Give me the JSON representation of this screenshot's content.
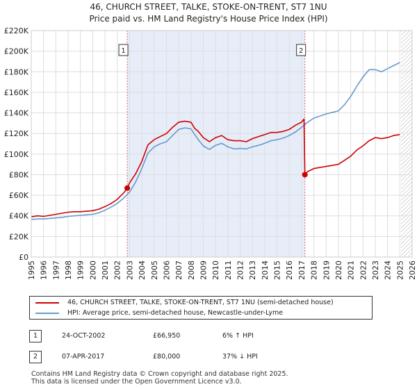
{
  "chart_data": {
    "type": "line",
    "title": "46, CHURCH STREET, TALKE, STOKE-ON-TRENT, ST7 1NU",
    "subtitle": "Price paid vs. HM Land Registry's House Price Index (HPI)",
    "xlabel": "",
    "ylabel": "",
    "xlim": [
      1995,
      2026
    ],
    "ylim": [
      0,
      220000
    ],
    "y_ticks": [
      0,
      20000,
      40000,
      60000,
      80000,
      100000,
      120000,
      140000,
      160000,
      180000,
      200000,
      220000
    ],
    "y_tick_labels": [
      "£0",
      "£20K",
      "£40K",
      "£60K",
      "£80K",
      "£100K",
      "£120K",
      "£140K",
      "£160K",
      "£180K",
      "£200K",
      "£220K"
    ],
    "x_ticks": [
      1995,
      1996,
      1997,
      1998,
      1999,
      2000,
      2001,
      2002,
      2003,
      2004,
      2005,
      2006,
      2007,
      2008,
      2009,
      2010,
      2011,
      2012,
      2013,
      2014,
      2015,
      2016,
      2017,
      2018,
      2019,
      2020,
      2021,
      2022,
      2023,
      2024,
      2025,
      2026
    ],
    "x_tick_labels": [
      "1995",
      "1996",
      "1997",
      "1998",
      "1999",
      "2000",
      "2001",
      "2002",
      "2003",
      "2004",
      "2005",
      "2006",
      "2007",
      "2008",
      "2009",
      "2010",
      "2011",
      "2012",
      "2013",
      "2014",
      "2015",
      "2016",
      "2017",
      "2018",
      "2019",
      "2020",
      "2021",
      "2022",
      "2023",
      "2024",
      "2025",
      "2026"
    ],
    "grid": true,
    "shaded_period": [
      2002.81,
      2017.27
    ],
    "hatched_from": 2025.1,
    "series": [
      {
        "name": "46, CHURCH STREET, TALKE, STOKE-ON-TRENT, ST7 1NU (semi-detached house)",
        "color": "#cc0000",
        "x": [
          1995.0,
          1995.5,
          1996.0,
          1996.5,
          1997.0,
          1997.5,
          1998.0,
          1998.5,
          1999.0,
          1999.5,
          2000.0,
          2000.5,
          2001.0,
          2001.5,
          2002.0,
          2002.5,
          2002.81,
          2003.0,
          2003.5,
          2004.0,
          2004.5,
          2005.0,
          2005.5,
          2006.0,
          2006.5,
          2007.0,
          2007.5,
          2008.0,
          2008.3,
          2008.6,
          2009.0,
          2009.5,
          2010.0,
          2010.5,
          2011.0,
          2011.5,
          2012.0,
          2012.5,
          2013.0,
          2013.5,
          2014.0,
          2014.5,
          2015.0,
          2015.5,
          2016.0,
          2016.5,
          2017.0,
          2017.2,
          2017.27,
          2017.5,
          2018.0,
          2018.5,
          2019.0,
          2019.5,
          2020.0,
          2020.5,
          2021.0,
          2021.5,
          2022.0,
          2022.5,
          2023.0,
          2023.5,
          2024.0,
          2024.5,
          2025.0
        ],
        "y": [
          39000,
          40000,
          39500,
          40500,
          41500,
          42500,
          43500,
          44000,
          44000,
          44500,
          45000,
          46500,
          49000,
          52000,
          56000,
          62000,
          66950,
          72000,
          81000,
          93000,
          109000,
          114000,
          117000,
          120000,
          126000,
          131000,
          132000,
          131000,
          125000,
          122000,
          116000,
          112000,
          116000,
          118000,
          114000,
          113000,
          113000,
          112000,
          115000,
          117000,
          119000,
          121000,
          121000,
          122000,
          124000,
          128000,
          131000,
          134000,
          80000,
          83000,
          86000,
          87000,
          88000,
          89000,
          90000,
          94000,
          98000,
          104000,
          108000,
          113000,
          116000,
          115000,
          116000,
          118000,
          119000
        ]
      },
      {
        "name": "HPI: Average price, semi-detached house, Newcastle-under-Lyme",
        "color": "#6699cc",
        "x": [
          1995.0,
          1995.5,
          1996.0,
          1996.5,
          1997.0,
          1997.5,
          1998.0,
          1998.5,
          1999.0,
          1999.5,
          2000.0,
          2000.5,
          2001.0,
          2001.5,
          2002.0,
          2002.5,
          2003.0,
          2003.5,
          2004.0,
          2004.5,
          2005.0,
          2005.5,
          2006.0,
          2006.5,
          2007.0,
          2007.5,
          2008.0,
          2008.3,
          2008.6,
          2009.0,
          2009.5,
          2010.0,
          2010.5,
          2011.0,
          2011.5,
          2012.0,
          2012.5,
          2013.0,
          2013.5,
          2014.0,
          2014.5,
          2015.0,
          2015.5,
          2016.0,
          2016.5,
          2017.0,
          2017.5,
          2018.0,
          2018.5,
          2019.0,
          2019.5,
          2020.0,
          2020.5,
          2021.0,
          2021.5,
          2022.0,
          2022.5,
          2023.0,
          2023.5,
          2024.0,
          2024.5,
          2025.0
        ],
        "y": [
          36500,
          37000,
          37000,
          37500,
          38000,
          38500,
          39500,
          40000,
          40500,
          41000,
          41500,
          43000,
          45500,
          48500,
          52000,
          57000,
          63000,
          73000,
          86000,
          101000,
          107000,
          110000,
          112000,
          118000,
          124000,
          125500,
          124500,
          119000,
          114000,
          108000,
          104500,
          108500,
          110500,
          107000,
          105000,
          105500,
          105000,
          107000,
          108500,
          110500,
          113000,
          114000,
          115500,
          118000,
          121500,
          126000,
          131000,
          135000,
          137000,
          139000,
          140500,
          142000,
          148000,
          156000,
          166000,
          175000,
          182000,
          182000,
          180000,
          183000,
          186000,
          189000
        ]
      }
    ],
    "annotations": [
      {
        "label": "1",
        "x": 2002.81,
        "y": 66950,
        "date": "24-OCT-2002",
        "price": "£66,950",
        "hpi": "6% ↑ HPI"
      },
      {
        "label": "2",
        "x": 2017.27,
        "y": 80000,
        "date": "07-APR-2017",
        "price": "£80,000",
        "hpi": "37% ↓ HPI"
      }
    ]
  },
  "footer": {
    "line1": "Contains HM Land Registry data © Crown copyright and database right 2025.",
    "line2": "This data is licensed under the Open Government Licence v3.0."
  }
}
